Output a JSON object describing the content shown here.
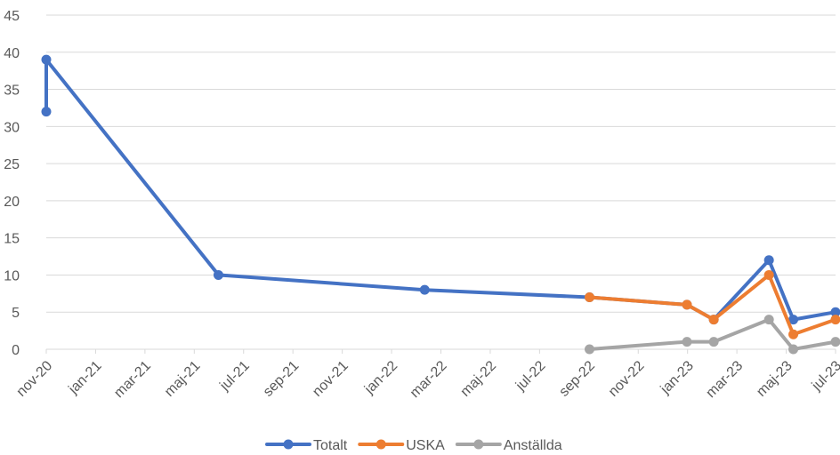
{
  "chart_data": {
    "type": "line",
    "title": "",
    "xlabel": "",
    "ylabel": "",
    "ylim": [
      0,
      45
    ],
    "yticks": [
      0,
      5,
      10,
      15,
      20,
      25,
      30,
      35,
      40,
      45
    ],
    "xticks": [
      "nov-20",
      "jan-21",
      "mar-21",
      "maj-21",
      "jul-21",
      "sep-21",
      "nov-21",
      "jan-22",
      "mar-22",
      "maj-22",
      "jul-22",
      "sep-22",
      "nov-22",
      "jan-23",
      "mar-23",
      "maj-23",
      "jul-23"
    ],
    "grid": true,
    "legend_position": "bottom",
    "series": [
      {
        "name": "Totalt",
        "color": "#4472C4",
        "points": [
          {
            "x": "2020-11-01",
            "y": 32
          },
          {
            "x": "2020-11-01",
            "y": 39
          },
          {
            "x": "2021-06-01",
            "y": 10
          },
          {
            "x": "2022-02-10",
            "y": 8
          },
          {
            "x": "2022-09-01",
            "y": 7
          },
          {
            "x": "2022-12-30",
            "y": 6
          },
          {
            "x": "2023-02-01",
            "y": 4
          },
          {
            "x": "2023-04-10",
            "y": 12
          },
          {
            "x": "2023-05-10",
            "y": 4
          },
          {
            "x": "2023-07-01",
            "y": 5
          }
        ]
      },
      {
        "name": "USKA",
        "color": "#ED7D31",
        "points": [
          {
            "x": "2022-09-01",
            "y": 7
          },
          {
            "x": "2022-12-30",
            "y": 6
          },
          {
            "x": "2023-02-01",
            "y": 4
          },
          {
            "x": "2023-04-10",
            "y": 10
          },
          {
            "x": "2023-05-10",
            "y": 2
          },
          {
            "x": "2023-07-01",
            "y": 4
          }
        ]
      },
      {
        "name": "Anställda",
        "color": "#A5A5A5",
        "points": [
          {
            "x": "2022-09-01",
            "y": 0
          },
          {
            "x": "2022-12-30",
            "y": 1
          },
          {
            "x": "2023-02-01",
            "y": 1
          },
          {
            "x": "2023-04-10",
            "y": 4
          },
          {
            "x": "2023-05-10",
            "y": 0
          },
          {
            "x": "2023-07-01",
            "y": 1
          }
        ]
      }
    ]
  }
}
